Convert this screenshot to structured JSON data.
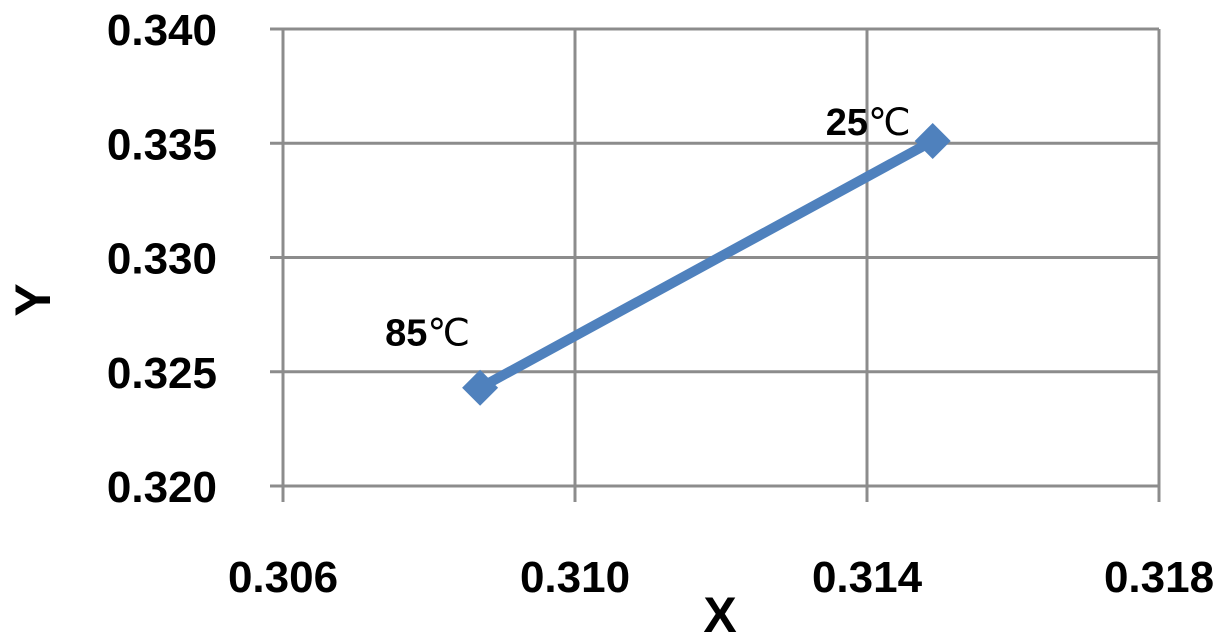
{
  "chart_data": {
    "type": "line",
    "title": "",
    "xlabel": "X",
    "ylabel": "Y",
    "xlim": [
      0.306,
      0.318
    ],
    "ylim": [
      0.32,
      0.34
    ],
    "xticks": [
      "0.306",
      "0.310",
      "0.314",
      "0.318"
    ],
    "yticks": [
      "0.320",
      "0.325",
      "0.330",
      "0.335",
      "0.340"
    ],
    "grid": true,
    "series": [
      {
        "color": "#4f81bd",
        "marker": "diamond",
        "points": [
          {
            "x": 0.3087,
            "y": 0.3243,
            "label": "85℃"
          },
          {
            "x": 0.3149,
            "y": 0.3351,
            "label": "25℃"
          }
        ]
      }
    ]
  }
}
